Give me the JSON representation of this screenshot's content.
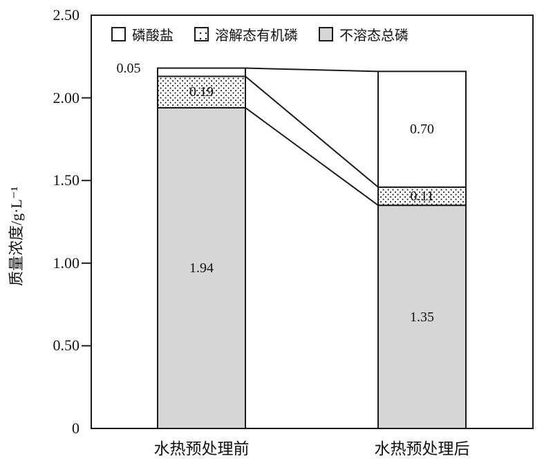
{
  "chart_data": {
    "type": "bar",
    "stacked": true,
    "categories": [
      "水热预处理前",
      "水热预处理后"
    ],
    "series": [
      {
        "name": "不溶态总磷",
        "fill": "gray",
        "values": [
          1.94,
          1.35
        ]
      },
      {
        "name": "溶解态有机磷",
        "fill": "dots",
        "values": [
          0.19,
          0.11
        ]
      },
      {
        "name": "磷酸盐",
        "fill": "white",
        "values": [
          0.05,
          0.7
        ]
      }
    ],
    "totals": [
      2.18,
      2.16
    ],
    "ylabel": "质量浓度/g·L⁻¹",
    "xlabel": "",
    "title": "",
    "ylim": [
      0,
      2.5
    ],
    "y_axis": {
      "tick_values": [
        2.5,
        2.0,
        1.5,
        1.0,
        0.5,
        0
      ],
      "tick_labels": [
        "2.50",
        "2.00",
        "1.50",
        "1.00",
        "0.50",
        "0"
      ],
      "tick_mark_values": [
        2.0,
        1.5,
        1.0,
        0.5
      ]
    },
    "legend": {
      "position": "top-inside",
      "items": [
        {
          "label": "磷酸盐",
          "fill": "white"
        },
        {
          "label": "溶解态有机磷",
          "fill": "dots"
        },
        {
          "label": "不溶态总磷",
          "fill": "gray"
        }
      ]
    },
    "value_labels": [
      {
        "category": 0,
        "series_index": 2,
        "text": "0.05",
        "placement": "outside-left"
      },
      {
        "category": 0,
        "series_index": 1,
        "text": "0.19",
        "placement": "inside"
      },
      {
        "category": 0,
        "series_index": 0,
        "text": "1.94",
        "placement": "inside"
      },
      {
        "category": 1,
        "series_index": 2,
        "text": "0.70",
        "placement": "inside"
      },
      {
        "category": 1,
        "series_index": 1,
        "text": "0.11",
        "placement": "inside"
      },
      {
        "category": 1,
        "series_index": 0,
        "text": "1.35",
        "placement": "inside"
      }
    ],
    "connectors": "lines join each stacked segment boundary of left bar to the matching boundary of right bar",
    "grid": false,
    "colors": {
      "stroke": "#1a1a1a",
      "gray_fill": "#d6d6d6",
      "white_fill": "#ffffff",
      "background": "#ffffff"
    }
  }
}
